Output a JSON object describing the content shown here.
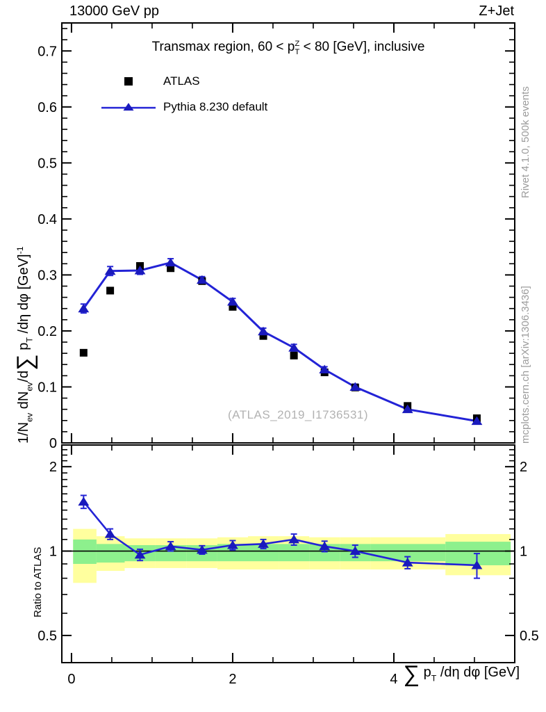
{
  "header": {
    "left": "13000 GeV pp",
    "right": "Z+Jet"
  },
  "title_segments": [
    {
      "t": "Transmax region, 60 < p"
    },
    {
      "s": "stack",
      "top": "Z",
      "bot": "T"
    },
    {
      "t": " < 80 [GeV], inclusive"
    }
  ],
  "legend": {
    "entries": [
      {
        "label": "ATLAS",
        "marker": "black-square"
      },
      {
        "label": "Pythia 8.230 default",
        "marker": "blue-line-triangle"
      }
    ]
  },
  "watermark": "(ATLAS_2019_I1736531)",
  "side_notes": {
    "top": "Rivet 4.1.0,  500k events",
    "bottom": "mcplots.cern.ch [arXiv:1306.3436]"
  },
  "axis_labels": {
    "top_y_segments": [
      {
        "t": "1/N"
      },
      {
        "t": "ev",
        "s": "sub"
      },
      {
        "t": " dN"
      },
      {
        "t": "ev",
        "s": "sub"
      },
      {
        "t": "/d"
      },
      {
        "t": "∑",
        "s": "big"
      },
      {
        "t": " p"
      },
      {
        "t": "T",
        "s": "sub"
      },
      {
        "t": " /dη dφ  [GeV]"
      },
      {
        "t": "-1",
        "s": "sup"
      }
    ],
    "x_segments": [
      {
        "t": "∑",
        "s": "big"
      },
      {
        "t": " p"
      },
      {
        "t": "T",
        "s": "sub"
      },
      {
        "t": " /dη dφ [GeV]"
      }
    ],
    "ratio_y": "Ratio to ATLAS"
  },
  "colors": {
    "series_line": "#2323d6",
    "series_marker": "#1a1abd",
    "atlas_marker": "#000000",
    "band_yellow": "#ffff9e",
    "band_green": "#8df08d",
    "frame": "#000000",
    "note_gray": "#9c9c9c",
    "watermark_gray": "#b2b2b2"
  },
  "chart_data": [
    {
      "type": "line",
      "title": "Transmax region, 60 < pT(Z) < 80 [GeV], inclusive",
      "xlabel": "sum(pT)/deta dphi [GeV]",
      "ylabel": "1/N_ev dN_ev/d sum(pT)/deta dphi [GeV]^-1",
      "xlim": [
        -0.12,
        5.5
      ],
      "ylim": [
        0,
        0.75
      ],
      "grid": false,
      "legend_position": "top-left",
      "x_major_ticks": [
        0,
        2,
        4
      ],
      "x_minor_step": 0.5,
      "y_major_step": 0.1,
      "y_minor_step": 0.02,
      "y_tick_labels": [
        "0",
        "0.1",
        "0.2",
        "0.3",
        "0.4",
        "0.5",
        "0.6",
        "0.7"
      ],
      "x": [
        0.15,
        0.48,
        0.85,
        1.23,
        1.62,
        2.0,
        2.38,
        2.76,
        3.14,
        3.52,
        4.17,
        5.03
      ],
      "series": [
        {
          "name": "ATLAS",
          "marker": "square",
          "line": false,
          "values": [
            0.161,
            0.272,
            0.316,
            0.312,
            0.289,
            0.243,
            0.191,
            0.156,
            0.126,
            0.099,
            0.066,
            0.044
          ]
        },
        {
          "name": "Pythia 8.230 default",
          "marker": "triangle",
          "line": true,
          "values": [
            0.24,
            0.307,
            0.308,
            0.322,
            0.291,
            0.252,
            0.199,
            0.17,
            0.131,
            0.1,
            0.06,
            0.039
          ],
          "errors": [
            0.008,
            0.008,
            0.007,
            0.007,
            0.006,
            0.006,
            0.006,
            0.006,
            0.005,
            0.005,
            0.004,
            0.004
          ]
        }
      ]
    },
    {
      "type": "ratio",
      "ylabel": "Ratio to ATLAS",
      "yscale": "log",
      "ylim": [
        0.4,
        2.39
      ],
      "y_major_ticks": [
        0.5,
        1,
        2
      ],
      "y_tick_labels": [
        "0.5",
        "1",
        "2"
      ],
      "y_minor_ticks": [
        0.4,
        0.6,
        0.7,
        0.8,
        0.9,
        1.1,
        1.2,
        1.3,
        1.4,
        1.5,
        1.6,
        1.7,
        1.8,
        1.9,
        2.1,
        2.2,
        2.3
      ],
      "x": [
        0.15,
        0.48,
        0.85,
        1.23,
        1.62,
        2.0,
        2.38,
        2.76,
        3.14,
        3.52,
        4.17,
        5.03
      ],
      "series": [
        {
          "name": "Pythia 8.230 default / ATLAS",
          "values": [
            1.5,
            1.15,
            0.97,
            1.04,
            1.01,
            1.05,
            1.06,
            1.1,
            1.04,
            1.0,
            0.91,
            0.89
          ],
          "errors": [
            0.08,
            0.05,
            0.045,
            0.04,
            0.035,
            0.04,
            0.04,
            0.05,
            0.045,
            0.05,
            0.045,
            0.09
          ]
        }
      ],
      "bands": {
        "bin_edges": [
          0.02,
          0.31,
          0.66,
          1.04,
          1.43,
          1.81,
          2.19,
          2.57,
          2.95,
          3.33,
          3.71,
          4.64,
          5.45
        ],
        "yellow_hi": [
          1.2,
          1.13,
          1.11,
          1.11,
          1.11,
          1.12,
          1.13,
          1.13,
          1.12,
          1.12,
          1.12,
          1.15
        ],
        "yellow_lo": [
          0.77,
          0.85,
          0.87,
          0.87,
          0.87,
          0.86,
          0.86,
          0.86,
          0.86,
          0.86,
          0.86,
          0.82
        ],
        "green_hi": [
          1.1,
          1.06,
          1.05,
          1.05,
          1.05,
          1.06,
          1.06,
          1.06,
          1.06,
          1.06,
          1.06,
          1.08
        ],
        "green_lo": [
          0.9,
          0.91,
          0.92,
          0.92,
          0.92,
          0.92,
          0.92,
          0.92,
          0.92,
          0.92,
          0.92,
          0.89
        ]
      }
    }
  ]
}
